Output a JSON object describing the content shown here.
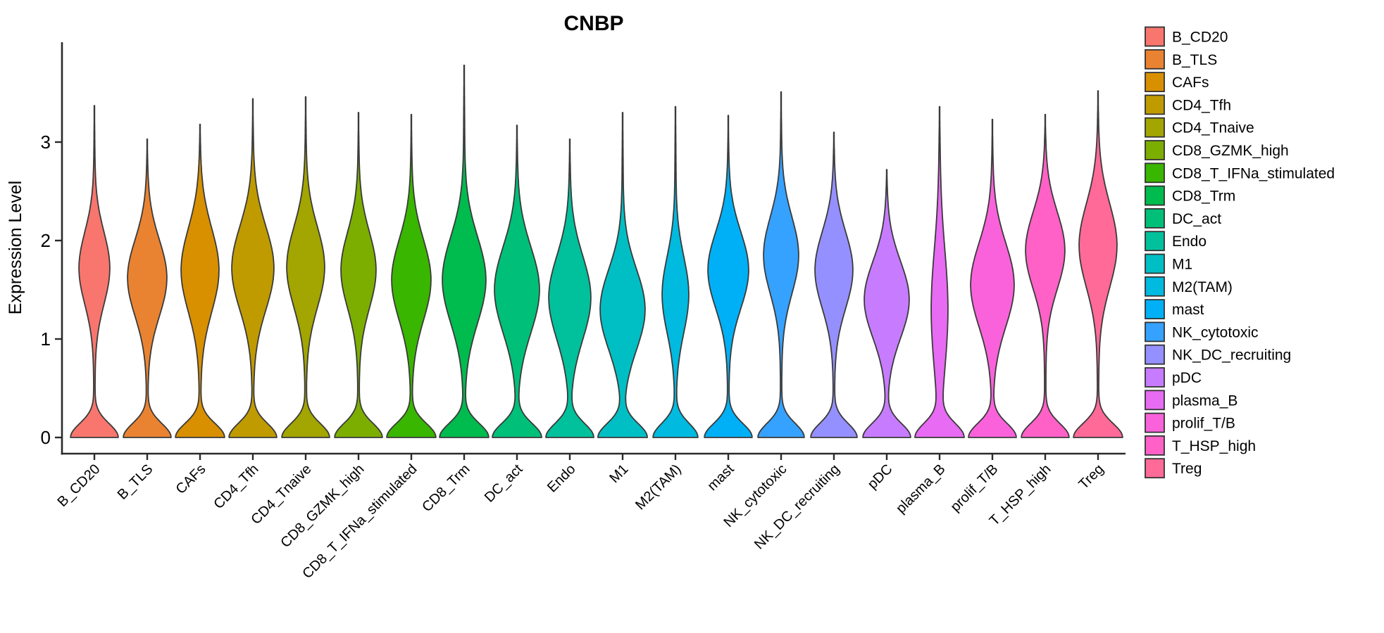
{
  "chart_data": {
    "type": "violin",
    "title": "CNBP",
    "ylabel": "Expression Level",
    "xlabel": "",
    "ylim": [
      0,
      3.9
    ],
    "yticks": [
      "0",
      "1",
      "2",
      "3"
    ],
    "grid": false,
    "legend_position": "right",
    "x_tick_rotation": 45,
    "axis_color": "#2a2a2a",
    "violin_outline_color": "#3a3a3a",
    "categories": [
      "B_CD20",
      "B_TLS",
      "CAFs",
      "CD4_Tfh",
      "CD4_Tnaive",
      "CD8_GZMK_high",
      "CD8_T_IFNa_stimulated",
      "CD8_Trm",
      "DC_act",
      "Endo",
      "M1",
      "M2(TAM)",
      "mast",
      "NK_cytotoxic",
      "NK_DC_recruiting",
      "pDC",
      "plasma_B",
      "prolif_T/B",
      "T_HSP_high",
      "Treg"
    ],
    "violins": [
      {
        "label": "B_CD20",
        "color": "#F8766D",
        "max_expression": 3.37,
        "bulge_center": 1.72,
        "bulge_halfwidth": 21,
        "bulge_sigma": 0.52,
        "base_halfwidth": 33
      },
      {
        "label": "B_TLS",
        "color": "#EA8331",
        "max_expression": 3.03,
        "bulge_center": 1.62,
        "bulge_halfwidth": 27,
        "bulge_sigma": 0.55,
        "base_halfwidth": 33
      },
      {
        "label": "CAFs",
        "color": "#D89000",
        "max_expression": 3.18,
        "bulge_center": 1.7,
        "bulge_halfwidth": 26,
        "bulge_sigma": 0.6,
        "base_halfwidth": 34
      },
      {
        "label": "CD4_Tfh",
        "color": "#C09B00",
        "max_expression": 3.44,
        "bulge_center": 1.72,
        "bulge_halfwidth": 29,
        "bulge_sigma": 0.6,
        "base_halfwidth": 33
      },
      {
        "label": "CD4_Tnaive",
        "color": "#A3A500",
        "max_expression": 3.46,
        "bulge_center": 1.73,
        "bulge_halfwidth": 26,
        "bulge_sigma": 0.58,
        "base_halfwidth": 33
      },
      {
        "label": "CD8_GZMK_high",
        "color": "#7CAE00",
        "max_expression": 3.3,
        "bulge_center": 1.7,
        "bulge_halfwidth": 24,
        "bulge_sigma": 0.55,
        "base_halfwidth": 33
      },
      {
        "label": "CD8_T_IFNa_stimulated",
        "color": "#39B600",
        "max_expression": 3.28,
        "bulge_center": 1.6,
        "bulge_halfwidth": 27,
        "bulge_sigma": 0.58,
        "base_halfwidth": 34
      },
      {
        "label": "CD8_Trm",
        "color": "#00BB4E",
        "max_expression": 3.78,
        "bulge_center": 1.6,
        "bulge_halfwidth": 30,
        "bulge_sigma": 0.62,
        "base_halfwidth": 34
      },
      {
        "label": "DC_act",
        "color": "#00C079",
        "max_expression": 3.17,
        "bulge_center": 1.5,
        "bulge_halfwidth": 31,
        "bulge_sigma": 0.62,
        "base_halfwidth": 34
      },
      {
        "label": "Endo",
        "color": "#00C19C",
        "max_expression": 3.03,
        "bulge_center": 1.42,
        "bulge_halfwidth": 29,
        "bulge_sigma": 0.6,
        "base_halfwidth": 33
      },
      {
        "label": "M1",
        "color": "#00BFC4",
        "max_expression": 3.3,
        "bulge_center": 1.3,
        "bulge_halfwidth": 31,
        "bulge_sigma": 0.58,
        "base_halfwidth": 34
      },
      {
        "label": "M2(TAM)",
        "color": "#00BAE0",
        "max_expression": 3.36,
        "bulge_center": 1.45,
        "bulge_halfwidth": 18,
        "bulge_sigma": 0.55,
        "base_halfwidth": 31
      },
      {
        "label": "mast",
        "color": "#00B0F6",
        "max_expression": 3.27,
        "bulge_center": 1.7,
        "bulge_halfwidth": 28,
        "bulge_sigma": 0.55,
        "base_halfwidth": 33
      },
      {
        "label": "NK_cytotoxic",
        "color": "#35A2FF",
        "max_expression": 3.51,
        "bulge_center": 1.85,
        "bulge_halfwidth": 24,
        "bulge_sigma": 0.55,
        "base_halfwidth": 32
      },
      {
        "label": "NK_DC_recruiting",
        "color": "#9590FF",
        "max_expression": 3.1,
        "bulge_center": 1.7,
        "bulge_halfwidth": 26,
        "bulge_sigma": 0.55,
        "base_halfwidth": 32
      },
      {
        "label": "pDC",
        "color": "#C77CFF",
        "max_expression": 2.72,
        "bulge_center": 1.4,
        "bulge_halfwidth": 31,
        "bulge_sigma": 0.55,
        "base_halfwidth": 33
      },
      {
        "label": "plasma_B",
        "color": "#E76BF3",
        "max_expression": 3.36,
        "bulge_center": 1.3,
        "bulge_halfwidth": 11,
        "bulge_sigma": 0.85,
        "base_halfwidth": 33
      },
      {
        "label": "prolif_T/B",
        "color": "#FA62DB",
        "max_expression": 3.23,
        "bulge_center": 1.55,
        "bulge_halfwidth": 30,
        "bulge_sigma": 0.6,
        "base_halfwidth": 33
      },
      {
        "label": "T_HSP_high",
        "color": "#FF61C7",
        "max_expression": 3.28,
        "bulge_center": 1.9,
        "bulge_halfwidth": 27,
        "bulge_sigma": 0.55,
        "base_halfwidth": 33
      },
      {
        "label": "Treg",
        "color": "#FF6A98",
        "max_expression": 3.52,
        "bulge_center": 1.95,
        "bulge_halfwidth": 26,
        "bulge_sigma": 0.6,
        "base_halfwidth": 34
      }
    ]
  }
}
